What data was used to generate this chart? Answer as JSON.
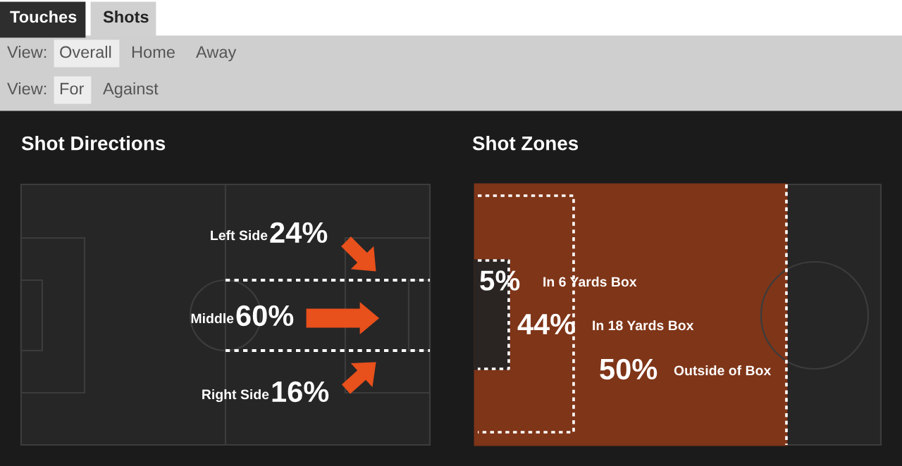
{
  "chart_data": [
    {
      "type": "other",
      "title": "Shot Directions",
      "categories": [
        "Left Side",
        "Middle",
        "Right Side"
      ],
      "values": [
        24,
        60,
        16
      ],
      "value_labels": [
        "24%",
        "60%",
        "16%"
      ],
      "annotations": [
        "Touches",
        "Shots",
        "View:",
        "Overall",
        "Home",
        "Away",
        "View:",
        "For",
        "Against"
      ]
    },
    {
      "type": "other",
      "title": "Shot Zones",
      "categories": [
        "In 6 Yards Box",
        "In 18 Yards Box",
        "Outside of Box"
      ],
      "values": [
        5,
        44,
        50
      ],
      "value_labels": [
        "5%",
        "44%",
        "50%"
      ]
    }
  ]
}
